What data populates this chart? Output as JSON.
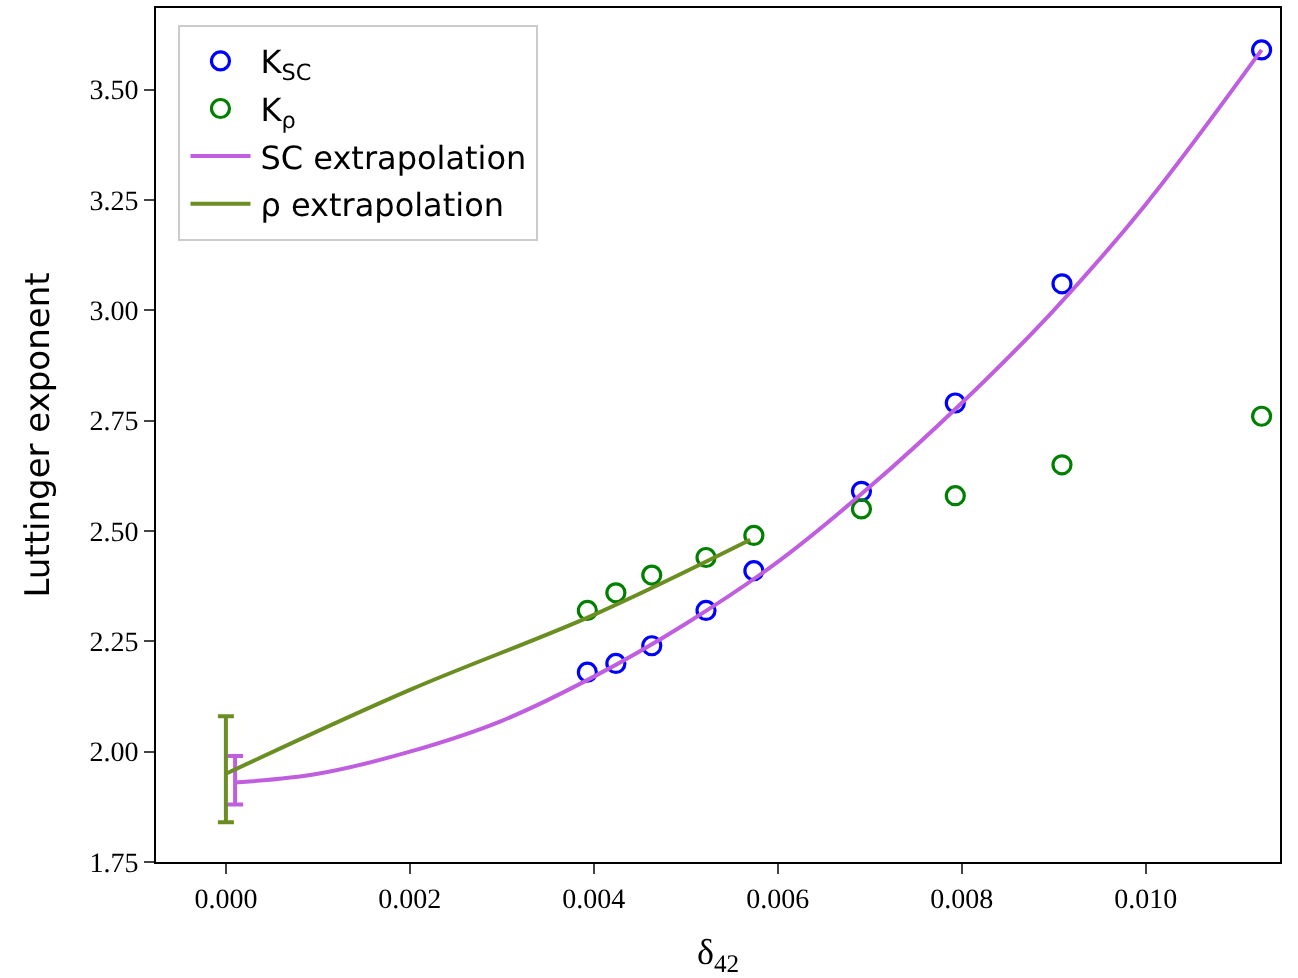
{
  "chart_data": {
    "type": "scatter",
    "xlabel": "δ$_{42}$",
    "ylabel": "Luttinger exponent",
    "xlim": [
      -0.00076,
      0.01146
    ],
    "ylim": [
      1.75,
      3.685
    ],
    "xticks": [
      {
        "value": 0,
        "label": "0.000"
      },
      {
        "value": 0.002,
        "label": "0.002"
      },
      {
        "value": 0.004,
        "label": "0.004"
      },
      {
        "value": 0.006,
        "label": "0.006"
      },
      {
        "value": 0.008,
        "label": "0.008"
      },
      {
        "value": 0.01,
        "label": "0.010"
      }
    ],
    "yticks": [
      {
        "value": 1.75,
        "label": "1.75"
      },
      {
        "value": 2.0,
        "label": "2.00"
      },
      {
        "value": 2.25,
        "label": "2.25"
      },
      {
        "value": 2.5,
        "label": "2.50"
      },
      {
        "value": 2.75,
        "label": "2.75"
      },
      {
        "value": 3.0,
        "label": "3.00"
      },
      {
        "value": 3.25,
        "label": "3.25"
      },
      {
        "value": 3.5,
        "label": "3.50"
      }
    ],
    "legend": "top left",
    "series": [
      {
        "name": "K$_{SC}$",
        "marker": "circle",
        "color": "#0000ff",
        "x": [
          0.00393,
          0.00424,
          0.00463,
          0.00522,
          0.00574,
          0.00691,
          0.00793,
          0.00909,
          0.01126
        ],
        "values": [
          2.18,
          2.2,
          2.24,
          2.32,
          2.41,
          2.59,
          2.79,
          3.06,
          3.59
        ]
      },
      {
        "name": "K$_{ρ}$",
        "marker": "circle",
        "color": "#008000",
        "x": [
          0.00393,
          0.00424,
          0.00463,
          0.00522,
          0.00574,
          0.00691,
          0.00793,
          0.00909,
          0.01126
        ],
        "values": [
          2.32,
          2.36,
          2.4,
          2.44,
          2.49,
          2.55,
          2.58,
          2.65,
          2.76
        ]
      },
      {
        "name": "SC extrapolation",
        "type": "line",
        "marker": "none",
        "color": "#bf5fdf",
        "x": [
          0.0001,
          0.001,
          0.002,
          0.003,
          0.004,
          0.005,
          0.006,
          0.007,
          0.008,
          0.009,
          0.01,
          0.01126
        ],
        "values": [
          1.93,
          1.95,
          2.0,
          2.07,
          2.17,
          2.29,
          2.43,
          2.6,
          2.79,
          3.0,
          3.24,
          3.59
        ],
        "errors": [
          [
            1.88,
            1.99
          ],
          null,
          null,
          null,
          null,
          null,
          null,
          null,
          null,
          null,
          null,
          null
        ]
      },
      {
        "name": "ρ extrapolation",
        "type": "line",
        "marker": "none",
        "color": "#6b8e23",
        "x": [
          0.0,
          0.002,
          0.004,
          0.0057
        ],
        "values": [
          1.95,
          2.14,
          2.31,
          2.48
        ],
        "errors": [
          [
            1.84,
            2.08
          ],
          null,
          null,
          null
        ]
      }
    ]
  }
}
